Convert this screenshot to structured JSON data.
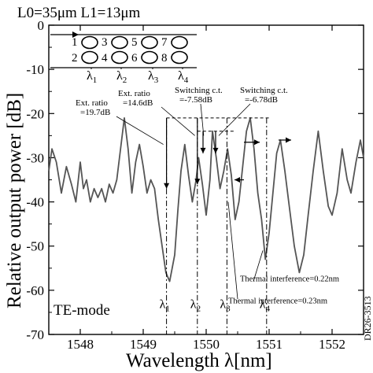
{
  "chart_data": {
    "type": "line",
    "title": "",
    "header_label": "L0=35μm L1=13μm",
    "xlabel": "Wavelength λ[nm]",
    "ylabel": "Relative output power [dB]",
    "xlim": [
      1547.5,
      1552.5
    ],
    "ylim": [
      -70,
      0
    ],
    "xticks": [
      "1548",
      "1549",
      "1550",
      "1551",
      "1552"
    ],
    "yticks": [
      "0",
      "-10",
      "-20",
      "-30",
      "-40",
      "-50",
      "-60",
      "-70"
    ],
    "grid": false,
    "legend": "none",
    "mode_label": "TE-mode",
    "figure_id": "DR26-3513",
    "inset": {
      "rings_top": [
        "1",
        "3",
        "5",
        "7"
      ],
      "rings_bottom": [
        "2",
        "4",
        "6",
        "8"
      ],
      "wavelength_labels": [
        "λ1",
        "λ2",
        "λ3",
        "λ4"
      ]
    },
    "lambda_markers": [
      {
        "label": "λ1",
        "x": 1549.37
      },
      {
        "label": "λ2",
        "x": 1549.86
      },
      {
        "label": "λ3",
        "x": 1550.33
      },
      {
        "label": "λ4",
        "x": 1550.96
      }
    ],
    "annotations": [
      {
        "text1": "Ext. ratio",
        "text2": "=19.7dB"
      },
      {
        "text1": "Ext. ratio",
        "text2": "=14.6dB"
      },
      {
        "text1": "Switching c.t.",
        "text2": "=-7.58dB"
      },
      {
        "text1": "Switching c.t.",
        "text2": "=-6.78dB"
      },
      {
        "text1": "Thermal interference=0.22nm"
      },
      {
        "text1": "Thermal interference=0.23nm"
      }
    ],
    "series": [
      {
        "x": [
          1547.5,
          1547.55,
          1547.62,
          1547.7,
          1547.78,
          1547.86,
          1547.93,
          1548.0,
          1548.05,
          1548.1,
          1548.16,
          1548.22,
          1548.28,
          1548.34,
          1548.4,
          1548.46,
          1548.52,
          1548.58,
          1548.64,
          1548.7,
          1548.76,
          1548.82,
          1548.88,
          1548.94,
          1549.0,
          1549.06,
          1549.12,
          1549.18,
          1549.24,
          1549.3,
          1549.36,
          1549.42,
          1549.5,
          1549.55,
          1549.6,
          1549.66,
          1549.72,
          1549.78,
          1549.84,
          1549.88,
          1549.94,
          1550.0,
          1550.06,
          1550.1,
          1550.16,
          1550.22,
          1550.28,
          1550.34,
          1550.4,
          1550.46,
          1550.52,
          1550.58,
          1550.64,
          1550.7,
          1550.76,
          1550.82,
          1550.88,
          1550.94,
          1551.0,
          1551.06,
          1551.12,
          1551.18,
          1551.25,
          1551.32,
          1551.4,
          1551.48,
          1551.55,
          1551.62,
          1551.7,
          1551.78,
          1551.86,
          1551.94,
          1552.0,
          1552.08,
          1552.16,
          1552.24,
          1552.3,
          1552.38,
          1552.45,
          1552.5
        ],
        "values": [
          -33,
          -28,
          -31,
          -38,
          -32,
          -36,
          -40,
          -31,
          -37,
          -35,
          -40,
          -37,
          -39,
          -37,
          -40,
          -36,
          -38,
          -35,
          -28,
          -21,
          -28,
          -38,
          -31,
          -27,
          -32,
          -38,
          -35,
          -37,
          -44,
          -50,
          -56,
          -58,
          -52,
          -42,
          -33,
          -27,
          -34,
          -40,
          -35,
          -30,
          -36,
          -43,
          -35,
          -24,
          -30,
          -37,
          -33,
          -28,
          -34,
          -44,
          -40,
          -32,
          -24,
          -21,
          -28,
          -38,
          -44,
          -53,
          -47,
          -38,
          -29,
          -26,
          -33,
          -41,
          -50,
          -56,
          -52,
          -43,
          -33,
          -24,
          -33,
          -41,
          -43,
          -38,
          -28,
          -35,
          -38,
          -31,
          -26,
          -30
        ]
      }
    ]
  }
}
